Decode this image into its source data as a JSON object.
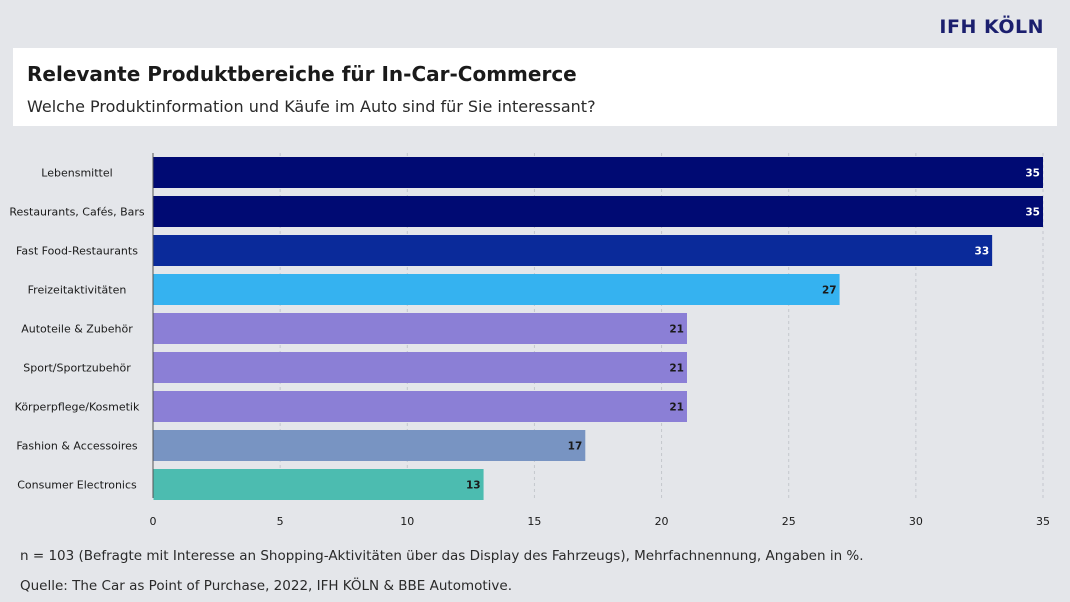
{
  "brand": {
    "logo_text": "IFH KÖLN"
  },
  "header": {
    "title": "Relevante Produktbereiche für In-Car-Commerce",
    "subtitle": "Welche Produktinformation und Käufe im Auto sind für Sie interessant?"
  },
  "footer": {
    "note": "n = 103 (Befragte mit Interesse an Shopping-Aktivitäten über das Display des Fahrzeugs), Mehrfachnennung, Angaben in %.",
    "source": "Quelle: The Car as Point of Purchase, 2022, IFH KÖLN & BBE Automotive."
  },
  "chart_data": {
    "type": "bar",
    "orientation": "horizontal",
    "title": "",
    "xlabel": "",
    "ylabel": "",
    "categories": [
      "Lebensmittel",
      "Restaurants, Cafés, Bars",
      "Fast Food-Restaurants",
      "Freizeitaktivitäten",
      "Autoteile & Zubehör",
      "Sport/Sportzubehör",
      "Körperpflege/Kosmetik",
      "Fashion & Accessoires",
      "Consumer Electronics"
    ],
    "values": [
      35,
      35,
      33,
      27,
      21,
      21,
      21,
      17,
      13
    ],
    "colors": [
      "#000a73",
      "#000a73",
      "#0a2a9a",
      "#35b2f0",
      "#8b7fd6",
      "#8b7fd6",
      "#8b7fd6",
      "#7894c2",
      "#4cbcb0"
    ],
    "label_colors": [
      "#ffffff",
      "#ffffff",
      "#ffffff",
      "#1a1a1a",
      "#1a1a1a",
      "#1a1a1a",
      "#1a1a1a",
      "#1a1a1a",
      "#1a1a1a"
    ],
    "xlim": [
      0,
      35
    ],
    "xticks": [
      0,
      5,
      10,
      15,
      20,
      25,
      30,
      35
    ],
    "grid": true,
    "legend": "none"
  }
}
